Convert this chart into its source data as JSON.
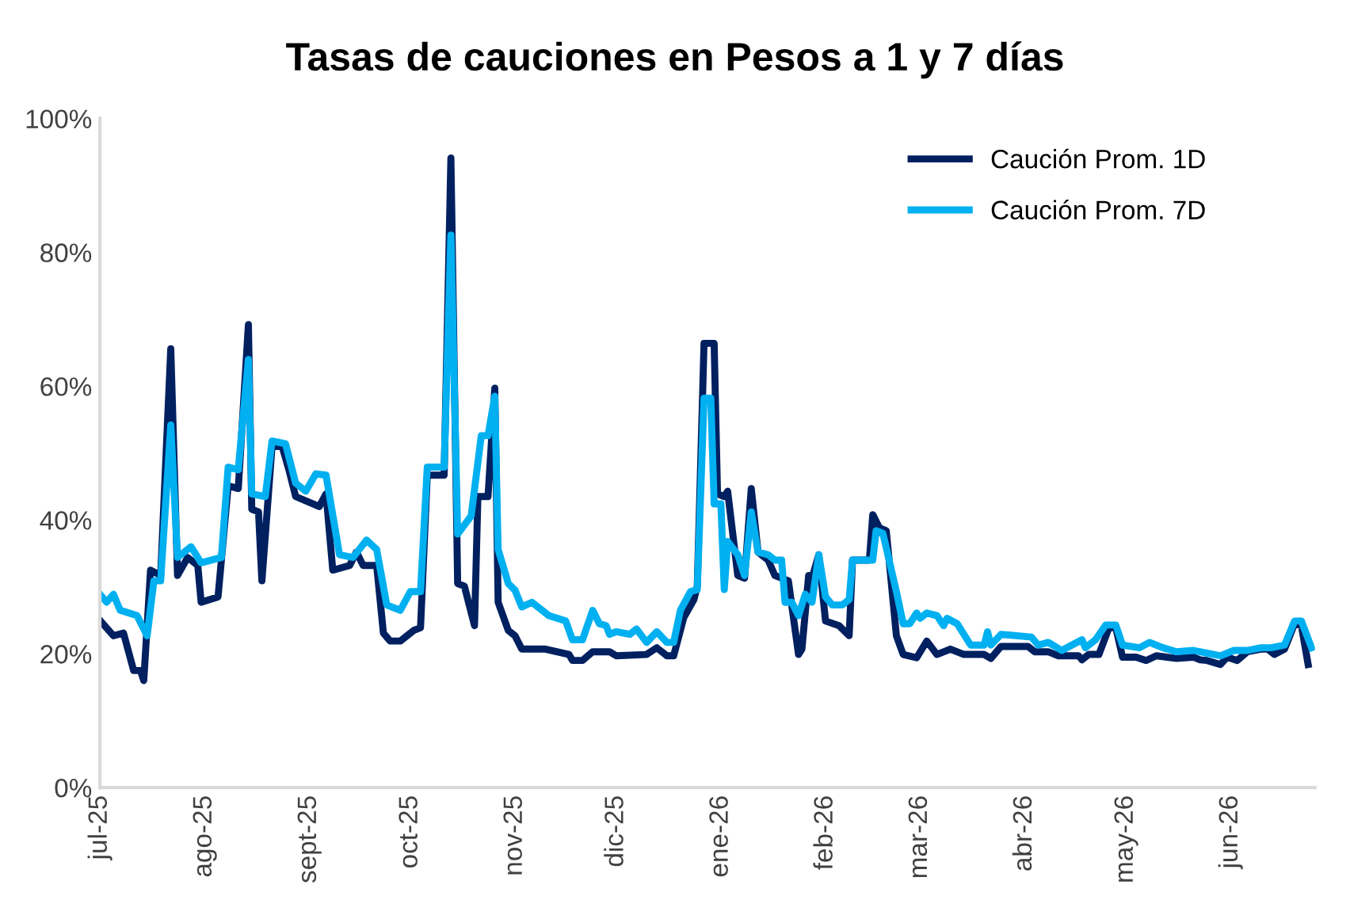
{
  "chart_data": {
    "type": "line",
    "title": "Tasas de cauciones en Pesos a 1 y 7 días",
    "xlim": [
      "2025-07-01",
      "2026-06-26"
    ],
    "xticks": [
      {
        "value": "2025-07-01",
        "label": "jul-25"
      },
      {
        "value": "2025-08-01",
        "label": "ago-25"
      },
      {
        "value": "2025-09-01",
        "label": "sept-25"
      },
      {
        "value": "2025-10-01",
        "label": "oct-25"
      },
      {
        "value": "2025-11-01",
        "label": "nov-25"
      },
      {
        "value": "2025-12-01",
        "label": "dic-25"
      },
      {
        "value": "2026-01-01",
        "label": "ene-26"
      },
      {
        "value": "2026-02-01",
        "label": "feb-26"
      },
      {
        "value": "2026-03-01",
        "label": "mar-26"
      },
      {
        "value": "2026-04-01",
        "label": "abr-26"
      },
      {
        "value": "2026-05-01",
        "label": "may-26"
      },
      {
        "value": "2026-06-01",
        "label": "jun-26"
      }
    ],
    "ylim": [
      0,
      100
    ],
    "yticks": [
      {
        "value": 0,
        "label": "0%"
      },
      {
        "value": 20,
        "label": "20%"
      },
      {
        "value": 40,
        "label": "40%"
      },
      {
        "value": 60,
        "label": "60%"
      },
      {
        "value": 80,
        "label": "80%"
      },
      {
        "value": 100,
        "label": "100%"
      }
    ],
    "grid": false,
    "legend": "top right",
    "marker": "none",
    "line_style": "solid",
    "series": [
      {
        "name": "Caución Prom. 1D",
        "color": "#002060",
        "x": [
          "2025-07-01",
          "2025-07-05",
          "2025-07-08",
          "2025-07-11",
          "2025-07-13",
          "2025-07-14",
          "2025-07-16",
          "2025-07-19",
          "2025-07-22",
          "2025-07-24",
          "2025-07-27",
          "2025-07-30",
          "2025-07-31",
          "2025-08-05",
          "2025-08-08",
          "2025-08-11",
          "2025-08-14",
          "2025-08-15",
          "2025-08-17",
          "2025-08-18",
          "2025-08-21",
          "2025-08-24",
          "2025-08-26",
          "2025-08-28",
          "2025-09-04",
          "2025-09-06",
          "2025-09-08",
          "2025-09-13",
          "2025-09-15",
          "2025-09-17",
          "2025-09-21",
          "2025-09-23",
          "2025-09-25",
          "2025-09-28",
          "2025-10-02",
          "2025-10-04",
          "2025-10-06",
          "2025-10-11",
          "2025-10-13",
          "2025-10-15",
          "2025-10-17",
          "2025-10-20",
          "2025-10-21",
          "2025-10-24",
          "2025-10-26",
          "2025-10-27",
          "2025-10-30",
          "2025-11-01",
          "2025-11-03",
          "2025-11-10",
          "2025-11-17",
          "2025-11-18",
          "2025-11-21",
          "2025-11-24",
          "2025-11-29",
          "2025-12-01",
          "2025-12-10",
          "2025-12-13",
          "2025-12-16",
          "2025-12-18",
          "2025-12-21",
          "2025-12-24",
          "2025-12-25",
          "2025-12-27",
          "2025-12-30",
          "2025-12-31",
          "2026-01-02",
          "2026-01-03",
          "2026-01-06",
          "2026-01-08",
          "2026-01-10",
          "2026-01-12",
          "2026-01-15",
          "2026-01-17",
          "2026-01-21",
          "2026-01-24",
          "2026-01-25",
          "2026-01-27",
          "2026-01-28",
          "2026-01-30",
          "2026-02-01",
          "2026-02-05",
          "2026-02-08",
          "2026-02-09",
          "2026-02-14",
          "2026-02-15",
          "2026-02-17",
          "2026-02-19",
          "2026-02-22",
          "2026-02-24",
          "2026-02-28",
          "2026-03-03",
          "2026-03-06",
          "2026-03-10",
          "2026-03-14",
          "2026-03-20",
          "2026-03-22",
          "2026-03-25",
          "2026-04-02",
          "2026-04-04",
          "2026-04-08",
          "2026-04-11",
          "2026-04-17",
          "2026-04-18",
          "2026-04-20",
          "2026-04-23",
          "2026-04-26",
          "2026-04-28",
          "2026-04-30",
          "2026-05-04",
          "2026-05-07",
          "2026-05-10",
          "2026-05-16",
          "2026-05-21",
          "2026-05-23",
          "2026-05-25",
          "2026-05-29",
          "2026-05-31",
          "2026-06-03",
          "2026-06-06",
          "2026-06-10",
          "2026-06-12",
          "2026-06-14",
          "2026-06-17",
          "2026-06-20",
          "2026-06-22",
          "2026-06-24"
        ],
        "values": [
          25.0,
          22.7,
          23.1,
          17.5,
          17.5,
          16.0,
          32.5,
          31.7,
          65.6,
          31.7,
          34.4,
          33.2,
          27.7,
          28.5,
          45.1,
          44.7,
          69.2,
          41.6,
          41.2,
          30.9,
          51.0,
          51.0,
          47.5,
          43.5,
          42.0,
          43.9,
          32.5,
          33.2,
          35.2,
          33.2,
          33.2,
          23.1,
          21.9,
          21.9,
          23.5,
          23.9,
          46.7,
          46.7,
          94.1,
          30.5,
          30.1,
          24.2,
          43.5,
          43.5,
          59.7,
          27.7,
          23.5,
          22.7,
          20.7,
          20.7,
          19.9,
          19.0,
          19.0,
          20.3,
          20.3,
          19.7,
          19.9,
          20.9,
          19.7,
          19.7,
          25.4,
          28.1,
          30.1,
          66.4,
          66.4,
          43.9,
          43.5,
          44.3,
          31.7,
          31.3,
          44.7,
          35.2,
          34.0,
          31.7,
          30.9,
          19.9,
          20.7,
          31.7,
          31.3,
          34.8,
          24.9,
          24.2,
          22.7,
          34.0,
          34.0,
          40.8,
          38.8,
          38.4,
          22.7,
          19.9,
          19.4,
          21.9,
          19.9,
          20.7,
          19.9,
          19.9,
          19.3,
          21.1,
          21.1,
          20.3,
          20.3,
          19.7,
          19.7,
          19.1,
          19.9,
          19.9,
          23.9,
          23.9,
          19.5,
          19.5,
          19.0,
          19.7,
          19.3,
          19.5,
          19.1,
          19.0,
          18.4,
          19.5,
          19.0,
          20.3,
          20.7,
          20.7,
          19.9,
          20.7,
          24.5,
          24.2,
          18.4
        ]
      },
      {
        "name": "Caución Prom. 7D",
        "color": "#00b0f0",
        "x": [
          "2025-07-01",
          "2025-07-03",
          "2025-07-05",
          "2025-07-07",
          "2025-07-12",
          "2025-07-15",
          "2025-07-17",
          "2025-07-19",
          "2025-07-22",
          "2025-07-24",
          "2025-07-28",
          "2025-07-31",
          "2025-08-06",
          "2025-08-08",
          "2025-08-11",
          "2025-08-14",
          "2025-08-15",
          "2025-08-19",
          "2025-08-21",
          "2025-08-25",
          "2025-08-28",
          "2025-08-31",
          "2025-09-03",
          "2025-09-06",
          "2025-09-10",
          "2025-09-14",
          "2025-09-18",
          "2025-09-21",
          "2025-09-24",
          "2025-09-28",
          "2025-10-01",
          "2025-10-04",
          "2025-10-06",
          "2025-10-11",
          "2025-10-13",
          "2025-10-15",
          "2025-10-19",
          "2025-10-22",
          "2025-10-24",
          "2025-10-26",
          "2025-10-27",
          "2025-10-30",
          "2025-11-01",
          "2025-11-03",
          "2025-11-06",
          "2025-11-09",
          "2025-11-11",
          "2025-11-16",
          "2025-11-18",
          "2025-11-21",
          "2025-11-24",
          "2025-11-26",
          "2025-11-28",
          "2025-11-29",
          "2025-12-01",
          "2025-12-05",
          "2025-12-07",
          "2025-12-10",
          "2025-12-13",
          "2025-12-16",
          "2025-12-18",
          "2025-12-20",
          "2025-12-23",
          "2025-12-25",
          "2025-12-27",
          "2025-12-29",
          "2025-12-30",
          "2026-01-01",
          "2026-01-02",
          "2026-01-03",
          "2026-01-06",
          "2026-01-08",
          "2026-01-10",
          "2026-01-12",
          "2026-01-15",
          "2026-01-17",
          "2026-01-19",
          "2026-01-20",
          "2026-01-22",
          "2026-01-24",
          "2026-01-26",
          "2026-01-28",
          "2026-01-30",
          "2026-02-01",
          "2026-02-03",
          "2026-02-06",
          "2026-02-08",
          "2026-02-09",
          "2026-02-15",
          "2026-02-16",
          "2026-02-18",
          "2026-02-22",
          "2026-02-24",
          "2026-02-26",
          "2026-02-28",
          "2026-03-01",
          "2026-03-03",
          "2026-03-06",
          "2026-03-08",
          "2026-03-09",
          "2026-03-12",
          "2026-03-16",
          "2026-03-20",
          "2026-03-21",
          "2026-03-22",
          "2026-03-25",
          "2026-04-03",
          "2026-04-05",
          "2026-04-08",
          "2026-04-12",
          "2026-04-15",
          "2026-04-18",
          "2026-04-19",
          "2026-04-22",
          "2026-04-25",
          "2026-04-28",
          "2026-04-30",
          "2026-05-05",
          "2026-05-08",
          "2026-05-12",
          "2026-05-16",
          "2026-05-21",
          "2026-05-25",
          "2026-05-29",
          "2026-06-02",
          "2026-06-06",
          "2026-06-10",
          "2026-06-13",
          "2026-06-17",
          "2026-06-20",
          "2026-06-22",
          "2026-06-25"
        ],
        "values": [
          28.9,
          27.7,
          28.9,
          26.5,
          25.7,
          22.7,
          30.9,
          30.9,
          54.2,
          34.4,
          36.0,
          33.6,
          34.4,
          47.9,
          47.5,
          64.0,
          43.9,
          43.5,
          51.8,
          51.4,
          45.5,
          44.3,
          46.9,
          46.7,
          34.8,
          34.4,
          37.0,
          35.6,
          27.3,
          26.5,
          29.3,
          29.3,
          47.9,
          47.9,
          82.6,
          37.9,
          40.6,
          52.6,
          52.6,
          58.5,
          35.6,
          30.5,
          29.5,
          27.0,
          27.7,
          26.5,
          25.7,
          24.9,
          22.1,
          22.1,
          26.5,
          24.5,
          24.2,
          22.9,
          23.3,
          22.9,
          23.7,
          21.7,
          23.3,
          21.7,
          21.7,
          26.5,
          29.3,
          29.6,
          58.2,
          58.2,
          42.4,
          42.4,
          29.6,
          36.8,
          34.8,
          31.7,
          41.2,
          35.2,
          34.8,
          34.0,
          34.0,
          27.7,
          27.7,
          25.7,
          28.9,
          27.7,
          34.8,
          28.5,
          27.3,
          27.3,
          28.1,
          34.0,
          34.0,
          38.4,
          38.0,
          29.3,
          24.5,
          24.5,
          26.1,
          25.3,
          26.1,
          25.7,
          24.2,
          25.3,
          24.5,
          21.3,
          21.3,
          23.3,
          21.3,
          22.9,
          22.5,
          21.3,
          21.7,
          20.5,
          21.3,
          22.1,
          20.9,
          22.1,
          24.3,
          24.3,
          21.3,
          20.9,
          21.7,
          20.9,
          20.3,
          20.5,
          20.1,
          19.7,
          20.5,
          20.5,
          20.9,
          20.9,
          21.3,
          24.9,
          24.9,
          20.9
        ]
      }
    ]
  }
}
